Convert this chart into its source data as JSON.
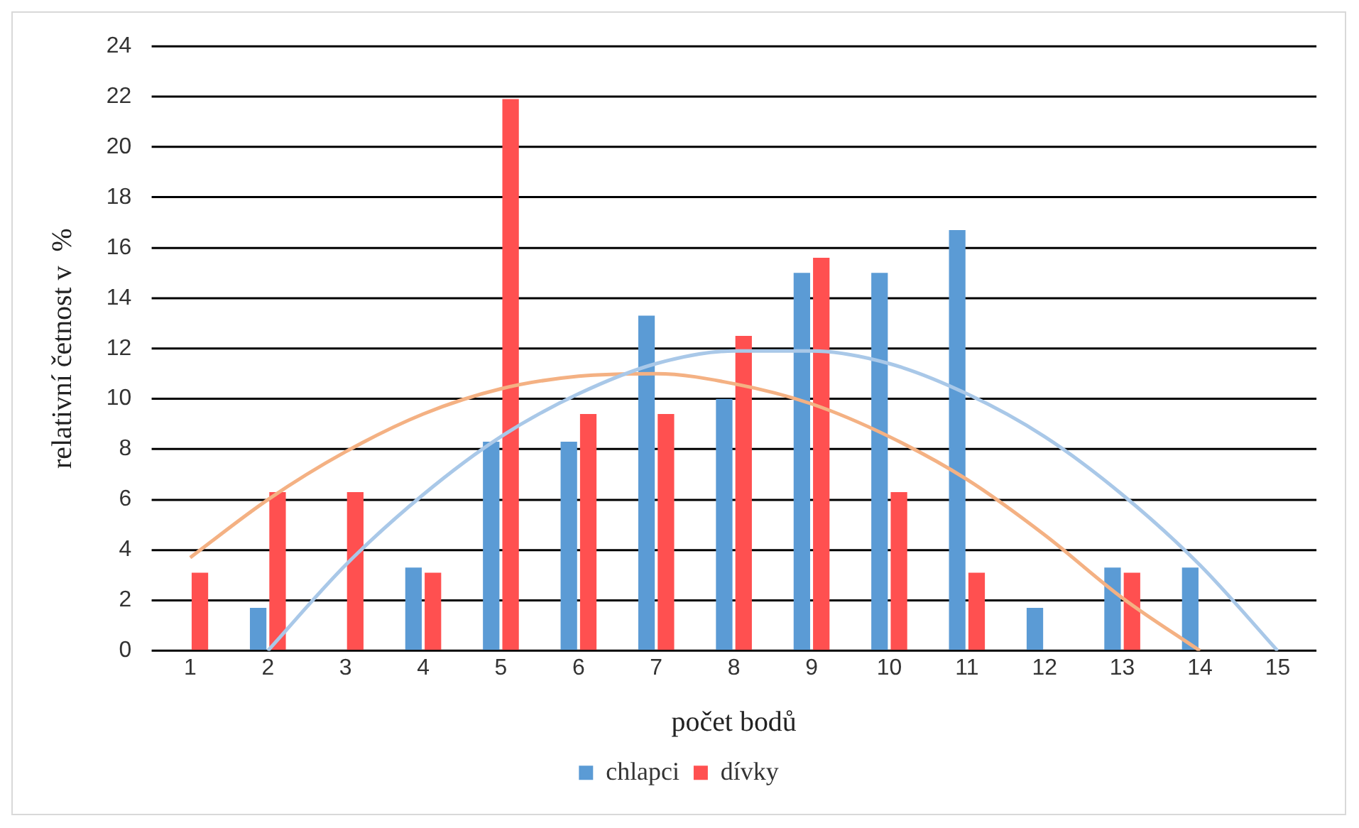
{
  "chart_data": {
    "type": "bar",
    "xlabel": "počet bodů",
    "ylabel": "relativní četnost v  %",
    "x": [
      1,
      2,
      3,
      4,
      5,
      6,
      7,
      8,
      9,
      10,
      11,
      12,
      13,
      14,
      15
    ],
    "xlim": [
      0.5,
      15.5
    ],
    "xticks": [
      1,
      2,
      3,
      4,
      5,
      6,
      7,
      8,
      9,
      10,
      11,
      12,
      13,
      14,
      15
    ],
    "ylim": [
      0,
      24
    ],
    "yticks": [
      0,
      2,
      4,
      6,
      8,
      10,
      12,
      14,
      16,
      18,
      20,
      22,
      24
    ],
    "grid": "y",
    "legend": "bottom",
    "series": [
      {
        "name": "chlapci",
        "color": "#5b9bd5",
        "values": [
          0,
          1.7,
          0,
          3.3,
          8.3,
          8.3,
          13.3,
          10,
          15,
          15,
          16.7,
          1.7,
          3.3,
          3.3,
          0
        ]
      },
      {
        "name": "dívky",
        "color": "#ff5050",
        "values": [
          3.1,
          6.3,
          6.3,
          3.1,
          21.9,
          9.4,
          9.4,
          12.5,
          15.6,
          6.3,
          3.1,
          0,
          3.1,
          0,
          0
        ]
      },
      {
        "type": "line",
        "color": "#a9c8e8",
        "x": [
          2,
          3,
          4,
          5,
          6,
          7,
          8,
          9,
          10,
          11,
          12,
          13,
          14,
          15
        ],
        "values": [
          0,
          3.4,
          6.2,
          8.5,
          10.2,
          11.4,
          11.9,
          11.9,
          11.4,
          10.2,
          8.5,
          6.2,
          3.4,
          0
        ]
      },
      {
        "type": "line",
        "color": "#f4b183",
        "x": [
          1,
          2,
          3,
          4,
          5,
          6,
          7,
          8,
          9,
          10,
          11,
          12,
          13,
          14
        ],
        "values": [
          3.7,
          6.0,
          7.9,
          9.4,
          10.4,
          10.9,
          11.0,
          10.6,
          9.8,
          8.5,
          6.8,
          4.6,
          2.1,
          0
        ]
      }
    ]
  }
}
